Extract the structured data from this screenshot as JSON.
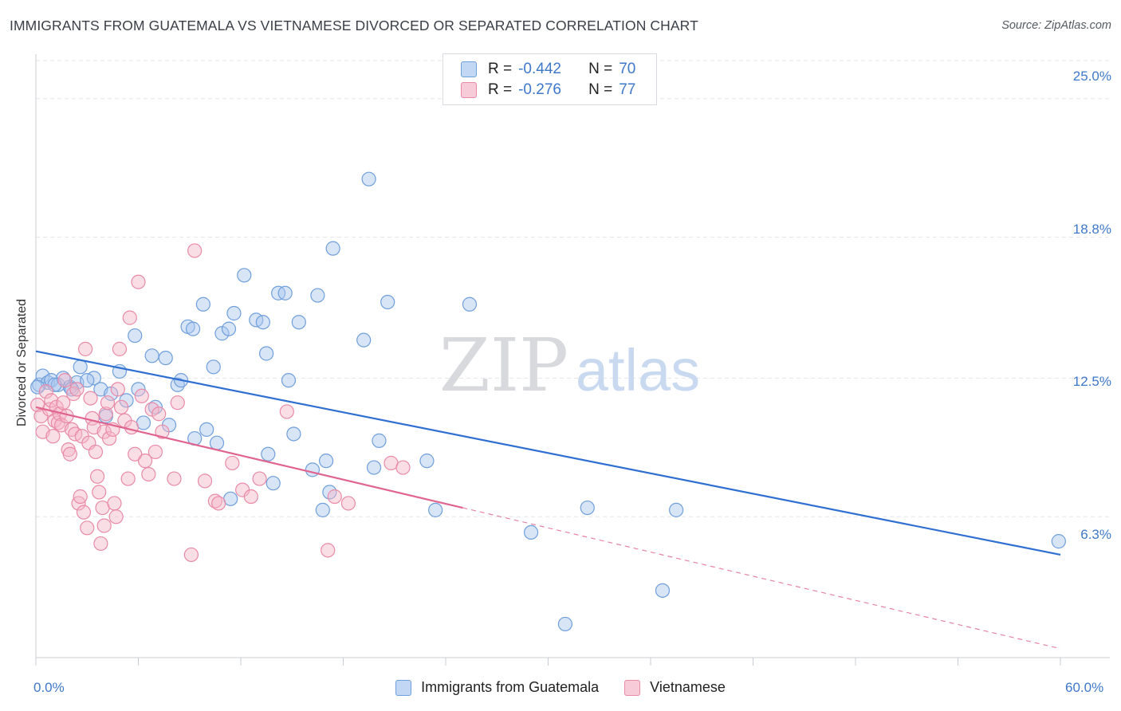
{
  "title": "IMMIGRANTS FROM GUATEMALA VS VIETNAMESE DIVORCED OR SEPARATED CORRELATION CHART",
  "source": "Source: ZipAtlas.com",
  "watermark": {
    "zip": "ZIP",
    "atlas": "atlas"
  },
  "legend_top": {
    "rows": [
      {
        "r_label": "R =",
        "r_value": "-0.442",
        "n_label": "N =",
        "n_value": "70"
      },
      {
        "r_label": "R =",
        "r_value": "-0.276",
        "n_label": "N =",
        "n_value": "77"
      }
    ]
  },
  "legend_bottom": [
    "Immigrants from Guatemala",
    "Vietnamese"
  ],
  "colors": {
    "blue_fill": "#a9c6ee",
    "blue_stroke": "#6f9fdc",
    "blue_line": "#2f6fd1",
    "pink_fill": "#f4b6c8",
    "pink_stroke": "#e98aa7",
    "pink_line": "#e0648f",
    "tick_text": "#3f78c9",
    "grid": "#e3e5ea"
  },
  "chart_data": {
    "type": "scatter",
    "title": "IMMIGRANTS FROM GUATEMALA VS VIETNAMESE DIVORCED OR SEPARATED CORRELATION CHART",
    "xlabel": "",
    "ylabel": "Divorced or Separated",
    "xlim": [
      0,
      60
    ],
    "ylim": [
      0,
      26.7
    ],
    "x_tick_labels": [
      "0.0%",
      "60.0%"
    ],
    "y_tick_labels": [
      "25.0%",
      "18.8%",
      "12.5%",
      "6.3%"
    ],
    "y_ticks": [
      25.0,
      18.8,
      12.5,
      6.3
    ],
    "grid": true,
    "legend_position": "top-center",
    "series": [
      {
        "name": "Immigrants from Guatemala",
        "color": "#a9c6ee",
        "trend": {
          "x": [
            0,
            60
          ],
          "y": [
            13.7,
            4.6
          ],
          "style": "solid"
        },
        "points": [
          [
            0.2,
            12.2
          ],
          [
            0.4,
            12.6
          ],
          [
            0.7,
            12.3
          ],
          [
            0.9,
            12.4
          ],
          [
            1.3,
            12.2
          ],
          [
            1.6,
            12.5
          ],
          [
            2.0,
            12.1
          ],
          [
            2.4,
            12.3
          ],
          [
            2.6,
            13.0
          ],
          [
            3.4,
            12.5
          ],
          [
            3.8,
            12.0
          ],
          [
            4.1,
            10.8
          ],
          [
            4.4,
            11.8
          ],
          [
            4.9,
            12.8
          ],
          [
            5.3,
            11.5
          ],
          [
            6.0,
            12.0
          ],
          [
            5.8,
            14.4
          ],
          [
            6.3,
            10.5
          ],
          [
            6.8,
            13.5
          ],
          [
            7.0,
            11.2
          ],
          [
            7.6,
            13.4
          ],
          [
            7.8,
            10.4
          ],
          [
            8.3,
            12.2
          ],
          [
            8.5,
            12.4
          ],
          [
            8.9,
            14.8
          ],
          [
            9.2,
            14.7
          ],
          [
            9.3,
            9.8
          ],
          [
            9.8,
            15.8
          ],
          [
            10.0,
            10.2
          ],
          [
            10.4,
            13.0
          ],
          [
            10.6,
            9.6
          ],
          [
            10.9,
            14.5
          ],
          [
            11.3,
            14.7
          ],
          [
            11.4,
            7.1
          ],
          [
            11.6,
            15.4
          ],
          [
            12.2,
            17.1
          ],
          [
            12.9,
            15.1
          ],
          [
            13.3,
            15.0
          ],
          [
            13.5,
            13.6
          ],
          [
            13.6,
            9.1
          ],
          [
            13.9,
            7.8
          ],
          [
            14.2,
            16.3
          ],
          [
            14.6,
            16.3
          ],
          [
            14.8,
            12.4
          ],
          [
            15.1,
            10.0
          ],
          [
            15.4,
            15.0
          ],
          [
            16.2,
            8.4
          ],
          [
            16.5,
            16.2
          ],
          [
            16.8,
            6.6
          ],
          [
            17.0,
            8.8
          ],
          [
            17.2,
            7.4
          ],
          [
            17.4,
            18.3
          ],
          [
            19.2,
            14.2
          ],
          [
            19.5,
            21.4
          ],
          [
            19.8,
            8.5
          ],
          [
            20.1,
            9.7
          ],
          [
            20.6,
            15.9
          ],
          [
            22.9,
            8.8
          ],
          [
            23.4,
            6.6
          ],
          [
            25.4,
            15.8
          ],
          [
            29.0,
            5.6
          ],
          [
            31.0,
            1.5
          ],
          [
            32.3,
            6.7
          ],
          [
            36.7,
            3.0
          ],
          [
            37.5,
            6.6
          ],
          [
            59.9,
            5.2
          ],
          [
            0.1,
            12.1
          ],
          [
            1.1,
            12.2
          ],
          [
            2.1,
            12.0
          ],
          [
            3.0,
            12.4
          ]
        ]
      },
      {
        "name": "Vietnamese",
        "color": "#f4b6c8",
        "trend": {
          "x": [
            0,
            25
          ],
          "y": [
            11.2,
            6.7
          ],
          "style": "solid",
          "dashed_to": [
            60,
            0.4
          ]
        },
        "points": [
          [
            0.1,
            11.3
          ],
          [
            0.3,
            10.8
          ],
          [
            0.4,
            10.1
          ],
          [
            0.6,
            11.9
          ],
          [
            0.8,
            11.1
          ],
          [
            0.9,
            11.5
          ],
          [
            1.0,
            9.9
          ],
          [
            1.1,
            10.6
          ],
          [
            1.2,
            11.2
          ],
          [
            1.3,
            10.5
          ],
          [
            1.4,
            10.9
          ],
          [
            1.5,
            10.4
          ],
          [
            1.6,
            11.4
          ],
          [
            1.7,
            12.4
          ],
          [
            1.8,
            10.8
          ],
          [
            1.9,
            9.3
          ],
          [
            2.0,
            9.1
          ],
          [
            2.1,
            10.2
          ],
          [
            2.2,
            11.8
          ],
          [
            2.3,
            10.0
          ],
          [
            2.4,
            12.0
          ],
          [
            2.5,
            6.9
          ],
          [
            2.6,
            7.2
          ],
          [
            2.7,
            9.9
          ],
          [
            2.8,
            6.5
          ],
          [
            2.9,
            13.8
          ],
          [
            3.0,
            5.8
          ],
          [
            3.1,
            9.6
          ],
          [
            3.2,
            11.6
          ],
          [
            3.3,
            10.7
          ],
          [
            3.4,
            10.3
          ],
          [
            3.5,
            9.2
          ],
          [
            3.6,
            8.1
          ],
          [
            3.7,
            7.4
          ],
          [
            3.8,
            5.1
          ],
          [
            3.9,
            6.7
          ],
          [
            4.0,
            10.1
          ],
          [
            4.1,
            10.9
          ],
          [
            4.2,
            11.4
          ],
          [
            4.3,
            9.8
          ],
          [
            4.5,
            10.2
          ],
          [
            4.6,
            6.9
          ],
          [
            4.7,
            6.3
          ],
          [
            4.8,
            12.0
          ],
          [
            4.9,
            13.8
          ],
          [
            5.0,
            11.2
          ],
          [
            5.2,
            10.6
          ],
          [
            5.4,
            8.0
          ],
          [
            5.5,
            15.2
          ],
          [
            5.6,
            10.3
          ],
          [
            5.8,
            9.1
          ],
          [
            6.0,
            16.8
          ],
          [
            6.2,
            11.7
          ],
          [
            6.4,
            8.8
          ],
          [
            6.6,
            8.2
          ],
          [
            6.8,
            11.1
          ],
          [
            7.0,
            9.2
          ],
          [
            7.2,
            10.9
          ],
          [
            7.4,
            10.1
          ],
          [
            8.1,
            8.0
          ],
          [
            8.3,
            11.4
          ],
          [
            9.1,
            4.6
          ],
          [
            9.3,
            18.2
          ],
          [
            9.9,
            7.9
          ],
          [
            10.5,
            7.0
          ],
          [
            10.7,
            6.9
          ],
          [
            11.5,
            8.7
          ],
          [
            12.1,
            7.5
          ],
          [
            12.6,
            7.2
          ],
          [
            13.1,
            8.0
          ],
          [
            14.7,
            11.0
          ],
          [
            17.1,
            4.8
          ],
          [
            17.5,
            7.2
          ],
          [
            18.3,
            6.9
          ],
          [
            20.8,
            8.7
          ],
          [
            21.5,
            8.5
          ],
          [
            4.0,
            5.9
          ]
        ]
      }
    ]
  }
}
